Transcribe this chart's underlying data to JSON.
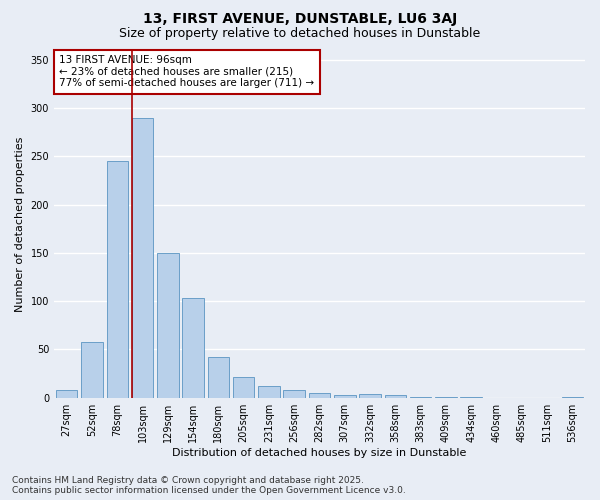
{
  "title": "13, FIRST AVENUE, DUNSTABLE, LU6 3AJ",
  "subtitle": "Size of property relative to detached houses in Dunstable",
  "xlabel": "Distribution of detached houses by size in Dunstable",
  "ylabel": "Number of detached properties",
  "categories": [
    "27sqm",
    "52sqm",
    "78sqm",
    "103sqm",
    "129sqm",
    "154sqm",
    "180sqm",
    "205sqm",
    "231sqm",
    "256sqm",
    "282sqm",
    "307sqm",
    "332sqm",
    "358sqm",
    "383sqm",
    "409sqm",
    "434sqm",
    "460sqm",
    "485sqm",
    "511sqm",
    "536sqm"
  ],
  "values": [
    8,
    58,
    245,
    290,
    150,
    103,
    42,
    21,
    12,
    8,
    5,
    3,
    4,
    3,
    1,
    1,
    1,
    0,
    0,
    0,
    1
  ],
  "bar_color": "#b8d0ea",
  "bar_edge_color": "#6a9fc8",
  "vline_x_index": 3,
  "vline_color": "#aa0000",
  "annotation_text": "13 FIRST AVENUE: 96sqm\n← 23% of detached houses are smaller (215)\n77% of semi-detached houses are larger (711) →",
  "annotation_box_color": "#ffffff",
  "annotation_edge_color": "#aa0000",
  "ylim": [
    0,
    360
  ],
  "yticks": [
    0,
    50,
    100,
    150,
    200,
    250,
    300,
    350
  ],
  "background_color": "#e8edf5",
  "plot_bg_color": "#e8edf5",
  "grid_color": "#ffffff",
  "footer": "Contains HM Land Registry data © Crown copyright and database right 2025.\nContains public sector information licensed under the Open Government Licence v3.0.",
  "title_fontsize": 10,
  "subtitle_fontsize": 9,
  "label_fontsize": 8,
  "tick_fontsize": 7,
  "annotation_fontsize": 7.5,
  "footer_fontsize": 6.5
}
